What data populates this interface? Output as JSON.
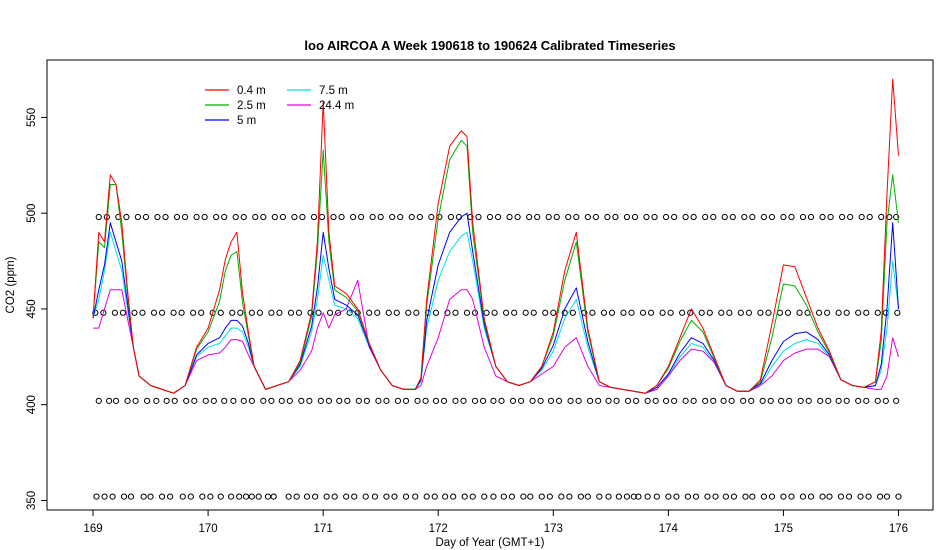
{
  "chart_data": {
    "type": "line",
    "title": "loo AIRCOA A  Week 190618 to 190624  Calibrated Timeseries",
    "xlabel": "Day of Year (GMT+1)",
    "ylabel": "CO2 (ppm)",
    "xlim": [
      168.6,
      176.3
    ],
    "ylim": [
      345,
      580
    ],
    "x_ticks": [
      169,
      170,
      171,
      172,
      173,
      174,
      175,
      176
    ],
    "y_ticks": [
      350,
      400,
      450,
      500,
      550
    ],
    "grid": false,
    "legend_position": "top-left",
    "colors": {
      "0.4 m": "#ff0000",
      "2.5 m": "#00b000",
      "5 m": "#0000ff",
      "7.5 m": "#00e0e0",
      "24.4 m": "#e000e0"
    },
    "base_series": {
      "x": [
        169.0,
        169.05,
        169.1,
        169.15,
        169.2,
        169.25,
        169.3,
        169.35,
        169.4,
        169.5,
        169.6,
        169.7,
        169.8,
        169.9,
        170.0,
        170.1,
        170.15,
        170.2,
        170.25,
        170.3,
        170.35,
        170.4,
        170.5,
        170.6,
        170.7,
        170.8,
        170.9,
        170.95,
        171.0,
        171.05,
        171.1,
        171.2,
        171.3,
        171.4,
        171.5,
        171.6,
        171.7,
        171.8,
        171.85,
        171.9,
        172.0,
        172.1,
        172.2,
        172.25,
        172.3,
        172.4,
        172.5,
        172.6,
        172.7,
        172.8,
        172.9,
        173.0,
        173.1,
        173.2,
        173.3,
        173.4,
        173.5,
        173.6,
        173.7,
        173.8,
        173.9,
        174.0,
        174.1,
        174.2,
        174.3,
        174.4,
        174.5,
        174.6,
        174.7,
        174.8,
        174.9,
        175.0,
        175.1,
        175.2,
        175.3,
        175.4,
        175.5,
        175.6,
        175.7,
        175.8,
        175.85,
        175.9,
        175.95,
        176.0
      ],
      "values": [
        445,
        455,
        470,
        490,
        480,
        470,
        450,
        430,
        415,
        410,
        408,
        406,
        410,
        425,
        430,
        432,
        436,
        440,
        440,
        438,
        430,
        420,
        408,
        410,
        412,
        420,
        438,
        455,
        478,
        465,
        452,
        450,
        445,
        430,
        418,
        410,
        408,
        408,
        412,
        440,
        465,
        480,
        488,
        490,
        475,
        440,
        420,
        412,
        410,
        412,
        418,
        428,
        445,
        455,
        430,
        412,
        409,
        408,
        407,
        406,
        408,
        415,
        425,
        432,
        430,
        422,
        410,
        407,
        407,
        410,
        420,
        428,
        432,
        434,
        432,
        425,
        413,
        410,
        409,
        410,
        418,
        440,
        475,
        450
      ]
    },
    "series": [
      {
        "name": "0.4 m",
        "offsets": [
          0,
          35,
          15,
          30,
          35,
          25,
          10,
          0,
          0,
          0,
          0,
          0,
          0,
          5,
          10,
          28,
          40,
          45,
          50,
          20,
          8,
          0,
          0,
          0,
          0,
          3,
          10,
          30,
          80,
          25,
          10,
          8,
          5,
          2,
          0,
          0,
          0,
          0,
          2,
          15,
          40,
          55,
          55,
          50,
          20,
          5,
          0,
          0,
          0,
          0,
          2,
          10,
          25,
          35,
          10,
          0,
          0,
          0,
          0,
          0,
          2,
          5,
          10,
          18,
          10,
          3,
          0,
          0,
          0,
          3,
          22,
          45,
          40,
          22,
          8,
          3,
          0,
          0,
          0,
          2,
          20,
          70,
          95,
          80
        ]
      },
      {
        "name": "2.5 m",
        "offsets": [
          0,
          30,
          12,
          25,
          35,
          20,
          8,
          0,
          0,
          0,
          0,
          0,
          0,
          4,
          8,
          22,
          34,
          38,
          40,
          15,
          6,
          0,
          0,
          0,
          0,
          2,
          8,
          25,
          55,
          20,
          8,
          6,
          4,
          2,
          0,
          0,
          0,
          0,
          2,
          12,
          32,
          48,
          50,
          45,
          15,
          4,
          0,
          0,
          0,
          0,
          2,
          8,
          20,
          30,
          8,
          0,
          0,
          0,
          0,
          0,
          2,
          4,
          8,
          12,
          8,
          2,
          0,
          0,
          0,
          2,
          15,
          35,
          30,
          18,
          6,
          2,
          0,
          0,
          0,
          2,
          15,
          55,
          45,
          45
        ]
      },
      {
        "name": "5 m",
        "offsets": [
          0,
          5,
          3,
          5,
          5,
          5,
          3,
          0,
          0,
          0,
          0,
          0,
          0,
          1,
          2,
          3,
          4,
          4,
          4,
          3,
          2,
          0,
          0,
          0,
          0,
          1,
          3,
          6,
          12,
          6,
          3,
          2,
          2,
          1,
          0,
          0,
          0,
          0,
          1,
          4,
          8,
          10,
          10,
          10,
          5,
          2,
          0,
          0,
          0,
          0,
          1,
          3,
          5,
          6,
          3,
          0,
          0,
          0,
          0,
          0,
          1,
          1,
          2,
          3,
          2,
          1,
          0,
          0,
          0,
          1,
          3,
          5,
          5,
          4,
          2,
          1,
          0,
          0,
          0,
          0,
          3,
          10,
          20,
          0
        ]
      },
      {
        "name": "7.5 m",
        "offsets": [
          0,
          0,
          0,
          0,
          0,
          0,
          0,
          0,
          0,
          0,
          0,
          0,
          0,
          0,
          0,
          0,
          0,
          0,
          0,
          0,
          0,
          0,
          0,
          0,
          0,
          0,
          0,
          0,
          0,
          0,
          0,
          0,
          0,
          0,
          0,
          0,
          0,
          0,
          0,
          0,
          0,
          0,
          0,
          0,
          0,
          0,
          0,
          0,
          0,
          0,
          0,
          0,
          0,
          0,
          0,
          0,
          0,
          0,
          0,
          0,
          0,
          0,
          0,
          0,
          0,
          0,
          0,
          0,
          0,
          0,
          0,
          0,
          0,
          0,
          0,
          0,
          0,
          0,
          0,
          0,
          0,
          0,
          0,
          0
        ]
      },
      {
        "name": "24.4 m",
        "offsets": [
          -5,
          -15,
          -20,
          -30,
          -20,
          -10,
          -5,
          0,
          0,
          0,
          0,
          0,
          0,
          -2,
          -4,
          -5,
          -6,
          -6,
          -6,
          -5,
          -4,
          0,
          0,
          0,
          0,
          -2,
          -10,
          -15,
          -30,
          -25,
          -5,
          0,
          20,
          0,
          0,
          0,
          0,
          0,
          -2,
          -20,
          -30,
          -25,
          -28,
          -30,
          -20,
          -10,
          -5,
          0,
          0,
          0,
          -2,
          -8,
          -15,
          -20,
          -10,
          -2,
          0,
          0,
          0,
          0,
          0,
          0,
          -2,
          -3,
          -2,
          0,
          0,
          0,
          0,
          0,
          -5,
          -5,
          -5,
          -5,
          -3,
          0,
          0,
          0,
          0,
          -2,
          -10,
          -25,
          -40,
          -25
        ]
      }
    ],
    "calibration_points": [
      {
        "level": 352,
        "x": [
          169.03,
          169.1,
          169.17,
          169.27,
          169.33,
          169.44,
          169.5,
          169.6,
          169.67,
          169.78,
          169.85,
          169.95,
          170.02,
          170.11,
          170.2,
          170.27,
          170.33,
          170.38,
          170.44,
          170.52,
          170.57,
          170.7,
          170.77,
          170.86,
          170.93,
          171.03,
          171.1,
          171.2,
          171.27,
          171.37,
          171.45,
          171.55,
          171.62,
          171.72,
          171.8,
          171.9,
          171.97,
          172.06,
          172.13,
          172.23,
          172.3,
          172.4,
          172.48,
          172.57,
          172.64,
          172.74,
          172.8,
          172.9,
          172.97,
          173.07,
          173.14,
          173.24,
          173.3,
          173.4,
          173.48,
          173.57,
          173.64,
          173.7,
          173.74,
          173.82,
          173.9,
          174.0,
          174.07,
          174.17,
          174.24,
          174.34,
          174.41,
          174.5,
          174.57,
          174.67,
          174.73,
          174.83,
          174.9,
          175.0,
          175.07,
          175.17,
          175.24,
          175.34,
          175.4,
          175.5,
          175.57,
          175.67,
          175.74,
          175.84,
          175.9,
          176.0
        ]
      },
      {
        "level": 402,
        "x": [
          169.05,
          169.14,
          169.2,
          169.3,
          169.37,
          169.47,
          169.55,
          169.64,
          169.71,
          169.81,
          169.88,
          169.98,
          170.05,
          170.14,
          170.22,
          170.31,
          170.38,
          170.48,
          170.55,
          170.64,
          170.71,
          170.81,
          170.88,
          170.98,
          171.05,
          171.14,
          171.21,
          171.31,
          171.38,
          171.48,
          171.55,
          171.65,
          171.72,
          171.82,
          171.89,
          171.98,
          172.05,
          172.15,
          172.22,
          172.32,
          172.39,
          172.48,
          172.55,
          172.65,
          172.72,
          172.82,
          172.89,
          172.98,
          173.05,
          173.15,
          173.22,
          173.32,
          173.39,
          173.48,
          173.55,
          173.65,
          173.72,
          173.82,
          173.89,
          173.98,
          174.05,
          174.15,
          174.22,
          174.32,
          174.39,
          174.48,
          174.55,
          174.65,
          174.72,
          174.82,
          174.89,
          174.98,
          175.05,
          175.15,
          175.22,
          175.32,
          175.39,
          175.48,
          175.55,
          175.65,
          175.72,
          175.82,
          175.89,
          175.98
        ]
      },
      {
        "level": 448,
        "x": [
          169.02,
          169.09,
          169.19,
          169.26,
          169.36,
          169.43,
          169.53,
          169.6,
          169.7,
          169.77,
          169.87,
          169.94,
          170.04,
          170.11,
          170.21,
          170.28,
          170.38,
          170.45,
          170.55,
          170.62,
          170.72,
          170.79,
          170.89,
          170.96,
          171.06,
          171.13,
          171.23,
          171.3,
          171.4,
          171.47,
          171.57,
          171.64,
          171.74,
          171.81,
          171.91,
          171.98,
          172.08,
          172.15,
          172.25,
          172.32,
          172.42,
          172.49,
          172.59,
          172.66,
          172.76,
          172.83,
          172.93,
          173.0,
          173.1,
          173.17,
          173.27,
          173.34,
          173.44,
          173.51,
          173.61,
          173.68,
          173.78,
          173.85,
          173.95,
          174.02,
          174.12,
          174.19,
          174.29,
          174.36,
          174.46,
          174.53,
          174.63,
          174.7,
          174.8,
          174.87,
          174.97,
          175.04,
          175.14,
          175.21,
          175.31,
          175.38,
          175.48,
          175.55,
          175.65,
          175.72,
          175.82,
          175.89,
          175.99
        ]
      },
      {
        "level": 498,
        "x": [
          169.05,
          169.12,
          169.22,
          169.29,
          169.39,
          169.46,
          169.56,
          169.63,
          169.73,
          169.8,
          169.9,
          169.97,
          170.07,
          170.14,
          170.24,
          170.31,
          170.41,
          170.48,
          170.58,
          170.65,
          170.75,
          170.82,
          170.92,
          170.99,
          171.09,
          171.16,
          171.26,
          171.33,
          171.43,
          171.5,
          171.6,
          171.67,
          171.77,
          171.84,
          171.94,
          172.01,
          172.11,
          172.18,
          172.28,
          172.35,
          172.45,
          172.52,
          172.62,
          172.69,
          172.79,
          172.86,
          172.96,
          173.03,
          173.13,
          173.2,
          173.3,
          173.37,
          173.47,
          173.54,
          173.64,
          173.71,
          173.81,
          173.88,
          173.98,
          174.05,
          174.15,
          174.22,
          174.32,
          174.39,
          174.49,
          174.56,
          174.66,
          174.73,
          174.83,
          174.9,
          175.0,
          175.07,
          175.17,
          175.24,
          175.34,
          175.41,
          175.51,
          175.58,
          175.68,
          175.75,
          175.85,
          175.92,
          175.98
        ]
      }
    ]
  }
}
